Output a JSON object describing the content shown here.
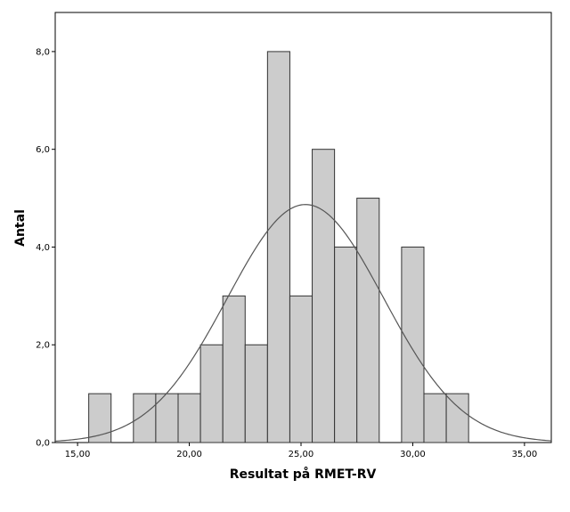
{
  "chart_data": {
    "type": "bar",
    "subtype": "histogram",
    "xlabel": "Resultat på RMET-RV",
    "ylabel": "Antal",
    "xlim": [
      14,
      36.2
    ],
    "ylim": [
      0,
      8.8
    ],
    "x_ticks": [
      {
        "value": 15,
        "label": "15,00"
      },
      {
        "value": 20,
        "label": "20,00"
      },
      {
        "value": 25,
        "label": "25,00"
      },
      {
        "value": 30,
        "label": "30,00"
      },
      {
        "value": 35,
        "label": "35,00"
      }
    ],
    "y_ticks": [
      {
        "value": 0,
        "label": "0,0"
      },
      {
        "value": 2,
        "label": "2,0"
      },
      {
        "value": 4,
        "label": "4,0"
      },
      {
        "value": 6,
        "label": "6,0"
      },
      {
        "value": 8,
        "label": "8,0"
      }
    ],
    "bin_width": 1,
    "bins": [
      {
        "center": 16,
        "count": 1
      },
      {
        "center": 18,
        "count": 1
      },
      {
        "center": 19,
        "count": 1
      },
      {
        "center": 20,
        "count": 1
      },
      {
        "center": 21,
        "count": 2
      },
      {
        "center": 22,
        "count": 3
      },
      {
        "center": 23,
        "count": 2
      },
      {
        "center": 24,
        "count": 8
      },
      {
        "center": 25,
        "count": 3
      },
      {
        "center": 26,
        "count": 6
      },
      {
        "center": 27,
        "count": 4
      },
      {
        "center": 28,
        "count": 5
      },
      {
        "center": 30,
        "count": 4
      },
      {
        "center": 31,
        "count": 1
      },
      {
        "center": 32,
        "count": 1
      }
    ],
    "normal_curve": {
      "mean": 25.2,
      "sd": 3.5,
      "peak": 4.87
    },
    "grid": false,
    "legend": "none",
    "colors": {
      "bar_fill": "#cccccc",
      "bar_stroke": "#333333",
      "curve": "#555555",
      "axis": "#000000"
    }
  }
}
